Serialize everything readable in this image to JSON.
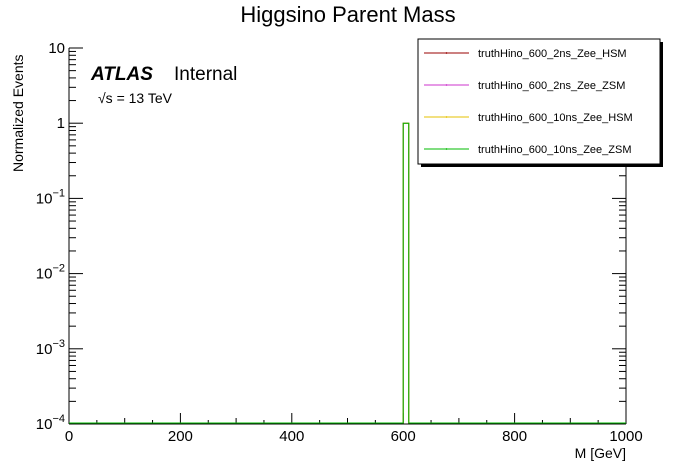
{
  "chart_data": {
    "type": "histogram",
    "title": "Higgsino Parent Mass",
    "xlabel": "M [GeV]",
    "ylabel": "Normalized Events",
    "xlim": [
      0,
      1000
    ],
    "ylim": [
      0.0001,
      10
    ],
    "ylog": true,
    "x_ticks": [
      {
        "value": 0,
        "label": "0"
      },
      {
        "value": 200,
        "label": "200"
      },
      {
        "value": 400,
        "label": "400"
      },
      {
        "value": 600,
        "label": "600"
      },
      {
        "value": 800,
        "label": "800"
      },
      {
        "value": 1000,
        "label": "1000"
      }
    ],
    "y_ticks": [
      {
        "value": 10,
        "base": "10",
        "exp": ""
      },
      {
        "value": 1,
        "base": "1",
        "exp": ""
      },
      {
        "value": 0.1,
        "base": "10",
        "exp": "−1"
      },
      {
        "value": 0.01,
        "base": "10",
        "exp": "−2"
      },
      {
        "value": 0.001,
        "base": "10",
        "exp": "−3"
      },
      {
        "value": 0.0001,
        "base": "10",
        "exp": "−4"
      }
    ],
    "atlas_label": "ATLAS",
    "atlas_status": "Internal",
    "energy_label": "√s = 13 TeV",
    "legend_placement": "top-right",
    "series": [
      {
        "name": "truthHino_600_2ns_Zee_HSM",
        "color": "#990000",
        "bins": [
          {
            "x0": 600,
            "x1": 610,
            "y": 1
          }
        ]
      },
      {
        "name": "truthHino_600_2ns_Zee_ZSM",
        "color": "#cc33cc",
        "bins": [
          {
            "x0": 600,
            "x1": 610,
            "y": 1
          }
        ]
      },
      {
        "name": "truthHino_600_10ns_Zee_HSM",
        "color": "#e6c200",
        "bins": [
          {
            "x0": 600,
            "x1": 610,
            "y": 1
          }
        ]
      },
      {
        "name": "truthHino_600_10ns_Zee_ZSM",
        "color": "#00bb00",
        "bins": [
          {
            "x0": 600,
            "x1": 610,
            "y": 1
          }
        ]
      }
    ]
  }
}
